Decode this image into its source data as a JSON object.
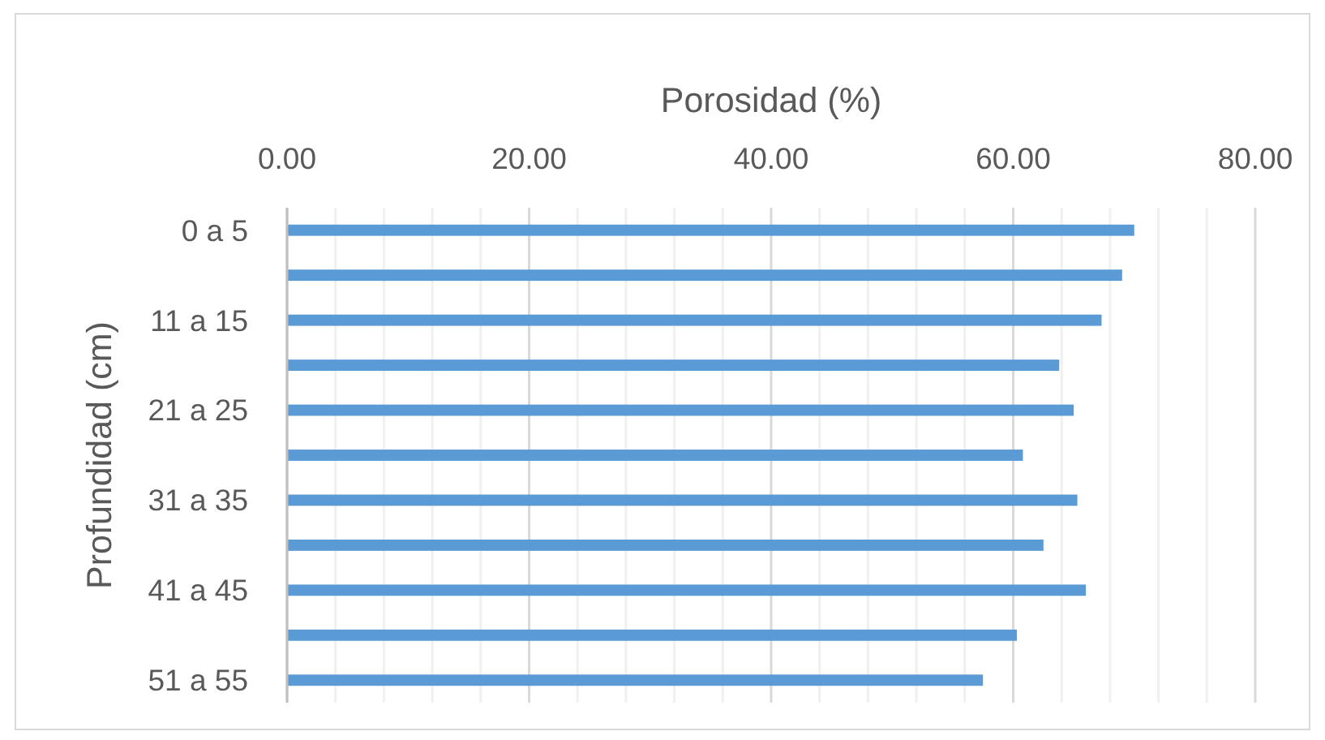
{
  "chart_data": {
    "type": "bar",
    "orientation": "horizontal",
    "xlabel": "Porosidad (%)",
    "ylabel": "Profundidad (cm)",
    "categories": [
      "0 a 5",
      null,
      "11 a 15",
      null,
      "21 a 25",
      null,
      "31 a 35",
      null,
      "41 a 45",
      null,
      "51 a 55"
    ],
    "values": [
      70.0,
      69.0,
      67.3,
      63.8,
      65.0,
      60.8,
      65.3,
      62.5,
      66.0,
      60.3,
      57.5
    ],
    "color": "#5b9bd5",
    "xlim": [
      0,
      80
    ],
    "xticks": [
      {
        "value": 0,
        "label": "0.00"
      },
      {
        "value": 4,
        "label": null
      },
      {
        "value": 8,
        "label": null
      },
      {
        "value": 12,
        "label": null
      },
      {
        "value": 16,
        "label": null
      },
      {
        "value": 20,
        "label": "20.00"
      },
      {
        "value": 24,
        "label": null
      },
      {
        "value": 28,
        "label": null
      },
      {
        "value": 32,
        "label": null
      },
      {
        "value": 36,
        "label": null
      },
      {
        "value": 40,
        "label": "40.00"
      },
      {
        "value": 44,
        "label": null
      },
      {
        "value": 48,
        "label": null
      },
      {
        "value": 52,
        "label": null
      },
      {
        "value": 56,
        "label": null
      },
      {
        "value": 60,
        "label": "60.00"
      },
      {
        "value": 64,
        "label": null
      },
      {
        "value": 68,
        "label": null
      },
      {
        "value": 72,
        "label": null
      },
      {
        "value": 76,
        "label": null
      },
      {
        "value": 80,
        "label": "80.00"
      }
    ],
    "grid": "x"
  }
}
